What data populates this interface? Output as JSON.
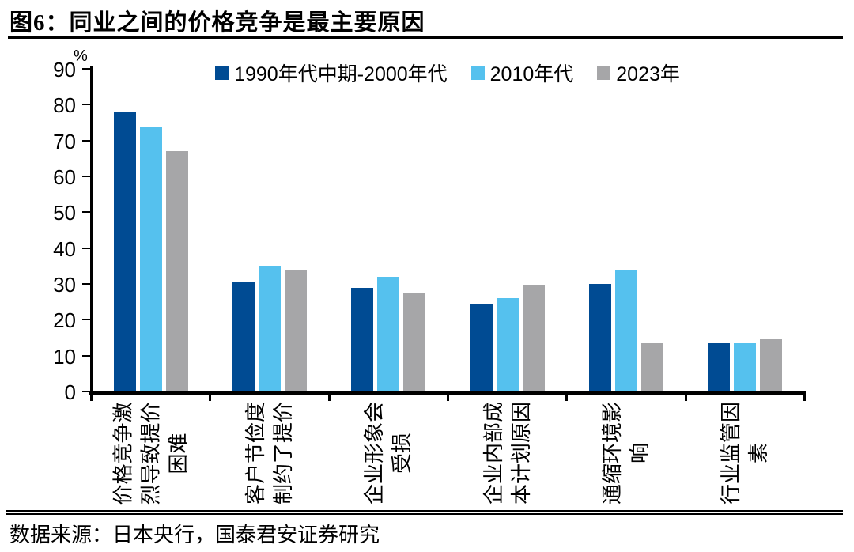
{
  "figure": {
    "title": "图6：同业之间的价格竞争是最主要原因",
    "source": "数据来源：日本央行，国泰君安证券研究"
  },
  "chart_data": {
    "type": "bar",
    "title": "同业之间的价格竞争是最主要原因",
    "unit_label": "%",
    "xlabel": "",
    "ylabel": "%",
    "ylim": [
      0,
      90
    ],
    "ytick_interval": 10,
    "yticks": [
      0,
      10,
      20,
      30,
      40,
      50,
      60,
      70,
      80,
      90
    ],
    "grid": false,
    "legend_position": "top",
    "categories": [
      "价格竞争激烈导致提价困难",
      "客户节俭度制约了提价",
      "企业形象会受损",
      "企业内部成本计划原因",
      "通缩环境影响",
      "行业监管因素"
    ],
    "category_display": [
      "价格竞争激\n烈导致提价\n困难",
      "客户节俭度\n制约了提价",
      "企业形象会\n受损",
      "企业内部成\n本计划原因",
      "通缩环境影\n响",
      "行业监管因\n素"
    ],
    "series": [
      {
        "name": "1990年代中期-2000年代",
        "color": "#004B93",
        "values": [
          78,
          30.5,
          29,
          24.5,
          30,
          13.5
        ]
      },
      {
        "name": "2010年代",
        "color": "#55C1EE",
        "values": [
          74,
          35,
          32,
          26,
          34,
          13.5
        ]
      },
      {
        "name": "2023年",
        "color": "#A6A6A8",
        "values": [
          67,
          34,
          27.5,
          29.5,
          13.5,
          14.5
        ]
      }
    ]
  },
  "colors": {
    "axis": "#000000",
    "text": "#000000",
    "background": "#ffffff"
  }
}
